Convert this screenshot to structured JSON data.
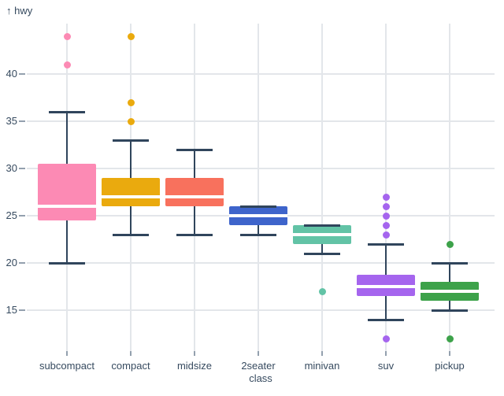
{
  "chart_data": {
    "type": "boxplot",
    "title": "",
    "ylabel": "hwy",
    "xlabel": "class",
    "y_axis_arrow": "↑",
    "y_ticks": [
      15,
      20,
      25,
      30,
      35,
      40
    ],
    "ylim": [
      10.5,
      45.5
    ],
    "grid": true,
    "legend": "none",
    "categories": [
      "subcompact",
      "compact",
      "midsize",
      "2seater",
      "minivan",
      "suv",
      "pickup"
    ],
    "series": [
      {
        "name": "subcompact",
        "color": "#FC8AB4",
        "whisker_low": 20,
        "q1": 24.5,
        "median": 26,
        "q3": 30.5,
        "whisker_high": 36,
        "outliers": [
          41,
          44
        ]
      },
      {
        "name": "compact",
        "color": "#EAAA0E",
        "whisker_low": 23,
        "q1": 26,
        "median": 27,
        "q3": 29,
        "whisker_high": 33,
        "outliers": [
          35,
          37,
          44
        ]
      },
      {
        "name": "midsize",
        "color": "#F8715D",
        "whisker_low": 23,
        "q1": 26,
        "median": 27,
        "q3": 29,
        "whisker_high": 32,
        "outliers": []
      },
      {
        "name": "2seater",
        "color": "#3E64CB",
        "whisker_low": 23,
        "q1": 24,
        "median": 25,
        "q3": 26,
        "whisker_high": 26,
        "outliers": []
      },
      {
        "name": "minivan",
        "color": "#62C3A6",
        "whisker_low": 21,
        "q1": 22,
        "median": 23,
        "q3": 24,
        "whisker_high": 24,
        "outliers": [
          17
        ]
      },
      {
        "name": "suv",
        "color": "#A565EE",
        "whisker_low": 14,
        "q1": 16.5,
        "median": 17.5,
        "q3": 18.75,
        "whisker_high": 22,
        "outliers": [
          12,
          23,
          24,
          25,
          26,
          27
        ]
      },
      {
        "name": "pickup",
        "color": "#3DA24A",
        "whisker_low": 15,
        "q1": 16,
        "median": 17,
        "q3": 18,
        "whisker_high": 20,
        "outliers": [
          12,
          22
        ]
      }
    ],
    "colors": {
      "stroke": "#30455C",
      "text": "#364A5F",
      "gridline": "#E3E6EA",
      "tick": "#93A0AE",
      "median_line": "#FFFFFF",
      "background": "#FFFFFF"
    }
  }
}
